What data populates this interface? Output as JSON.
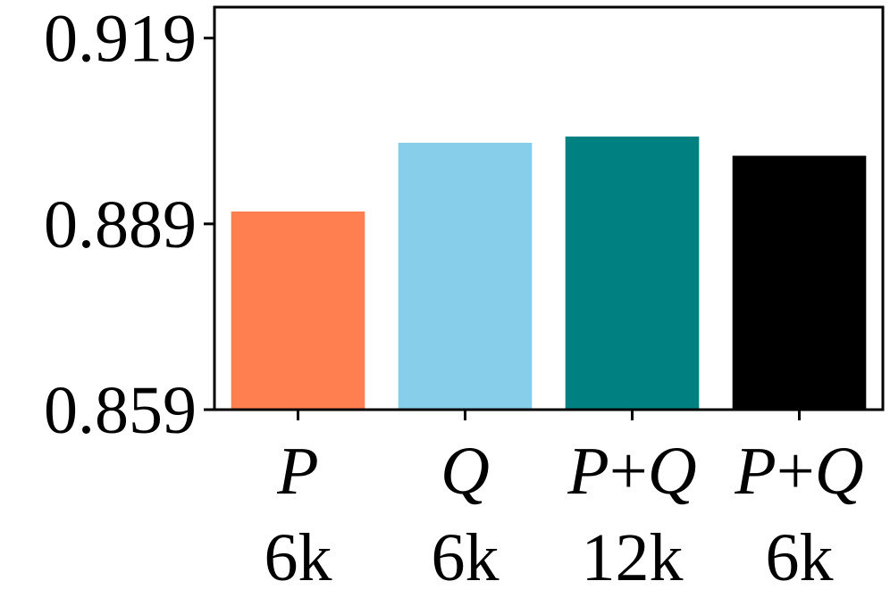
{
  "chart_data": {
    "type": "bar",
    "categories": [
      {
        "main": "P",
        "sub": "6k"
      },
      {
        "main": "Q",
        "sub": "6k"
      },
      {
        "main": "P+Q",
        "sub": "12k"
      },
      {
        "main": "P+Q",
        "sub": "6k"
      }
    ],
    "values": [
      0.891,
      0.9021,
      0.9031,
      0.9
    ],
    "colors": [
      "#ff7f50",
      "#87ceeb",
      "#008080",
      "#000000"
    ],
    "yticks": [
      "0.859",
      "0.889",
      "0.919"
    ],
    "ytick_values": [
      0.859,
      0.889,
      0.919
    ],
    "ylim": [
      0.859,
      0.924
    ],
    "title": "",
    "xlabel": "",
    "ylabel": "",
    "grid": false
  }
}
